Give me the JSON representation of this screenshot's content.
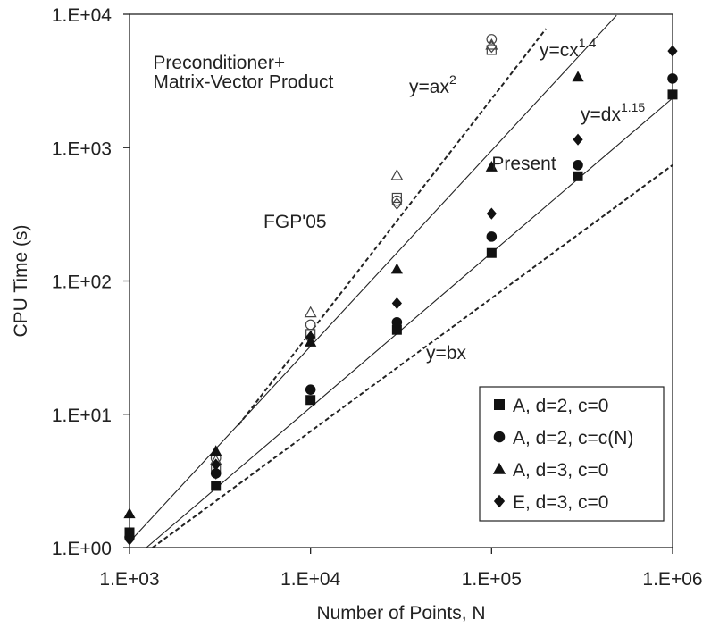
{
  "chart_data": {
    "type": "scatter",
    "scale": {
      "x": "log",
      "y": "log"
    },
    "xlabel": "Number of Points, N",
    "ylabel": "CPU Time (s)",
    "xlim": [
      1000,
      1000000
    ],
    "ylim": [
      1,
      10000
    ],
    "x_ticks": [
      {
        "value": 1000,
        "label": "1.E+03"
      },
      {
        "value": 10000,
        "label": "1.E+04"
      },
      {
        "value": 100000,
        "label": "1.E+05"
      },
      {
        "value": 1000000,
        "label": "1.E+06"
      }
    ],
    "y_ticks": [
      {
        "value": 1,
        "label": "1.E+00"
      },
      {
        "value": 10,
        "label": "1.E+01"
      },
      {
        "value": 100,
        "label": "1.E+02"
      },
      {
        "value": 1000,
        "label": "1.E+03"
      },
      {
        "value": 10000,
        "label": "1.E+04"
      }
    ],
    "grid": false,
    "legend_position": "bottom-right",
    "series": [
      {
        "name": "A, d=2, c=0",
        "marker": "square",
        "filled": true,
        "points": [
          [
            1000,
            1.3
          ],
          [
            3000,
            2.9
          ],
          [
            10000,
            12.8
          ],
          [
            30000,
            43
          ],
          [
            100000,
            162
          ],
          [
            300000,
            610
          ],
          [
            1000000,
            2500
          ]
        ]
      },
      {
        "name": "A, d=2, c=c(N)",
        "marker": "circle",
        "filled": true,
        "points": [
          [
            1000,
            1.2
          ],
          [
            3000,
            3.6
          ],
          [
            10000,
            15.3
          ],
          [
            30000,
            49
          ],
          [
            100000,
            215
          ],
          [
            300000,
            740
          ],
          [
            1000000,
            3300
          ]
        ]
      },
      {
        "name": "A, d=3, c=0",
        "marker": "triangle",
        "filled": true,
        "points": [
          [
            1000,
            1.8
          ],
          [
            3000,
            5.3
          ],
          [
            10000,
            35
          ],
          [
            30000,
            123
          ],
          [
            100000,
            720
          ],
          [
            300000,
            3400
          ]
        ]
      },
      {
        "name": "E, d=3, c=0",
        "marker": "diamond",
        "filled": true,
        "points": [
          [
            1000,
            1.15
          ],
          [
            3000,
            4.2
          ],
          [
            10000,
            38
          ],
          [
            30000,
            68
          ],
          [
            100000,
            320
          ],
          [
            300000,
            1150
          ],
          [
            1000000,
            5300
          ]
        ]
      }
    ],
    "open_series": [
      {
        "marker": "square",
        "points": [
          [
            3000,
            3.9
          ],
          [
            10000,
            40
          ],
          [
            30000,
            420
          ],
          [
            100000,
            5400
          ]
        ]
      },
      {
        "marker": "circle",
        "points": [
          [
            3000,
            4.7
          ],
          [
            10000,
            47
          ],
          [
            30000,
            400
          ],
          [
            100000,
            6500
          ]
        ]
      },
      {
        "marker": "triangle",
        "points": [
          [
            3000,
            4.5
          ],
          [
            10000,
            58
          ],
          [
            30000,
            620
          ],
          [
            100000,
            5900
          ]
        ]
      },
      {
        "marker": "diamond",
        "points": [
          [
            3000,
            3.6
          ],
          [
            10000,
            37
          ],
          [
            30000,
            380
          ],
          [
            100000,
            5700
          ]
        ]
      }
    ],
    "lines": [
      {
        "label": "y=ax",
        "exp": "2",
        "style": "dashed",
        "from": [
          4000,
          8.3
        ],
        "to": [
          200000,
          7800
        ]
      },
      {
        "label": "y=cx",
        "exp": "1.4",
        "style": "solid",
        "from": [
          1060,
          1.2
        ],
        "to": [
          490000,
          9800
        ]
      },
      {
        "label": "y=dx",
        "exp": "1.15",
        "style": "solid",
        "from": [
          1240,
          1
        ],
        "to": [
          1000000,
          2350
        ]
      },
      {
        "label": "y=bx",
        "style": "dashed",
        "from": [
          1340,
          1
        ],
        "to": [
          1000000,
          740
        ]
      }
    ],
    "annotations": [
      {
        "text": "Preconditioner+",
        "x": 1350,
        "y": 3900
      },
      {
        "text": "Matrix-Vector Product",
        "x": 1350,
        "y": 2800
      },
      {
        "text": "FGP'05",
        "x": 5500,
        "y": 250
      },
      {
        "text": "Present",
        "x": 100000,
        "y": 680
      }
    ]
  }
}
